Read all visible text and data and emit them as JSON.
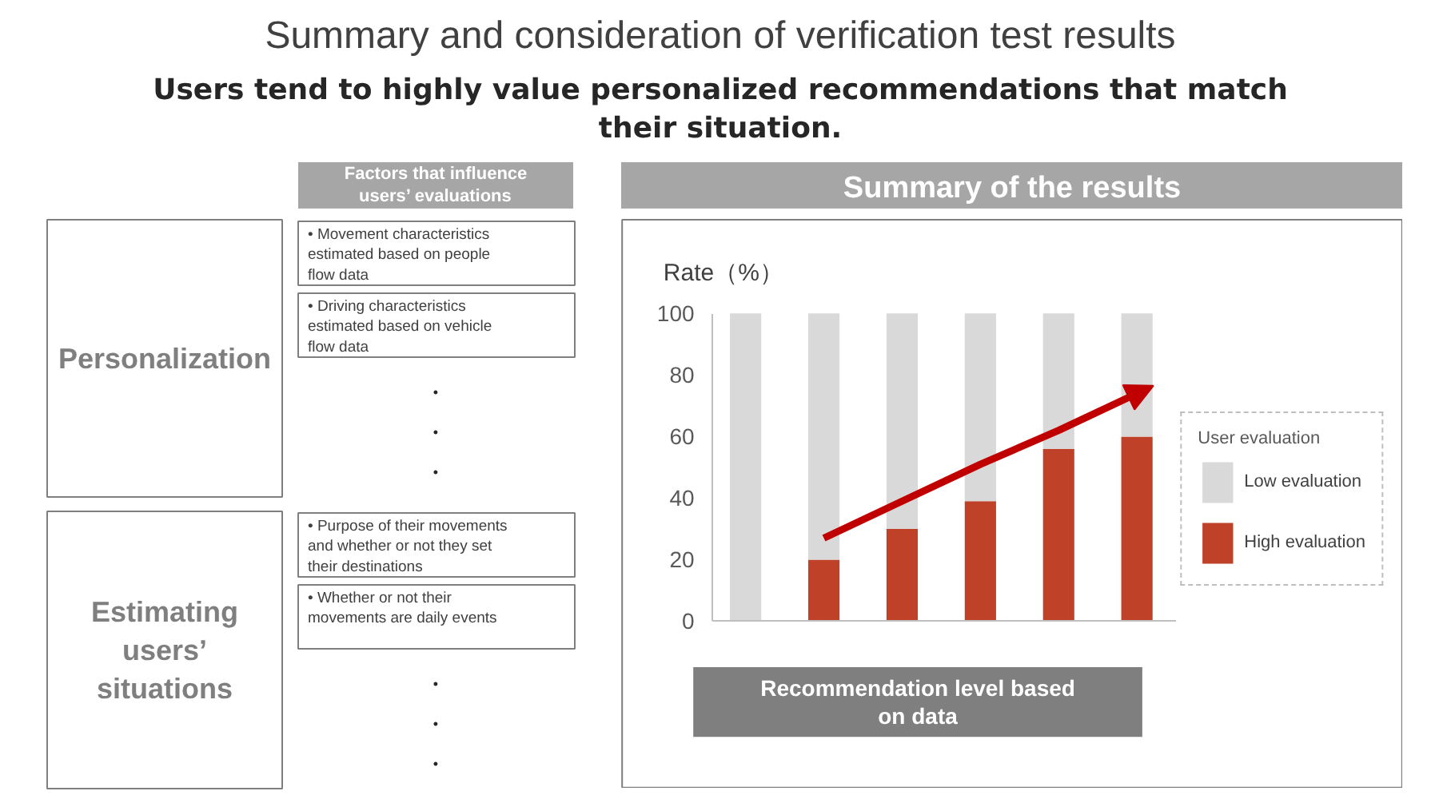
{
  "chart_data": [
    {
      "type": "other",
      "title": "Summary and consideration of verification test results",
      "subtitle": "Users tend to highly value personalized recommendations that match their situation.",
      "xlabel": "Factors that influence users’ evaluations",
      "categories": [
        "Personalization",
        "Estimating users’ situations"
      ],
      "annotations": [
        {
          "text": "• Movement characteristics estimated based on people flow data",
          "y": "Personalization"
        },
        {
          "text": "• Driving characteristics estimated based on vehicle flow data",
          "y": "Personalization"
        },
        {
          "text": "•\n•\n•",
          "y": "Personalization"
        },
        {
          "text": "• Purpose of their movements and whether or not they set their destinations",
          "y": "Estimating users’ situations"
        },
        {
          "text": "• Whether or not their movements are daily events",
          "y": "Estimating users’ situations"
        },
        {
          "text": "•\n•\n•",
          "y": "Estimating users’ situations"
        }
      ]
    },
    {
      "type": "bar",
      "title": "Summary of the results",
      "ylabel": "Rate（%）",
      "xlabel": "Recommendation level based on data",
      "categories": [
        null,
        null,
        null,
        null,
        null,
        null
      ],
      "stacked": true,
      "legend_title": "User evaluation",
      "legend": "right",
      "tick_labels": "y",
      "ylim": [
        0,
        100
      ],
      "yticks": [
        0,
        20,
        40,
        60,
        80,
        100
      ],
      "series": [
        {
          "name": "High evaluation",
          "color": "#be4128",
          "values": [
            0,
            20,
            30,
            39,
            56,
            60
          ]
        },
        {
          "name": "Low evaluation",
          "color": "#d9d9d9",
          "values": [
            100,
            80,
            70,
            61,
            44,
            40
          ]
        },
        {
          "type": "line",
          "color": "#c00000",
          "values": [
            null,
            27,
            39,
            51,
            62,
            74
          ]
        }
      ]
    }
  ]
}
